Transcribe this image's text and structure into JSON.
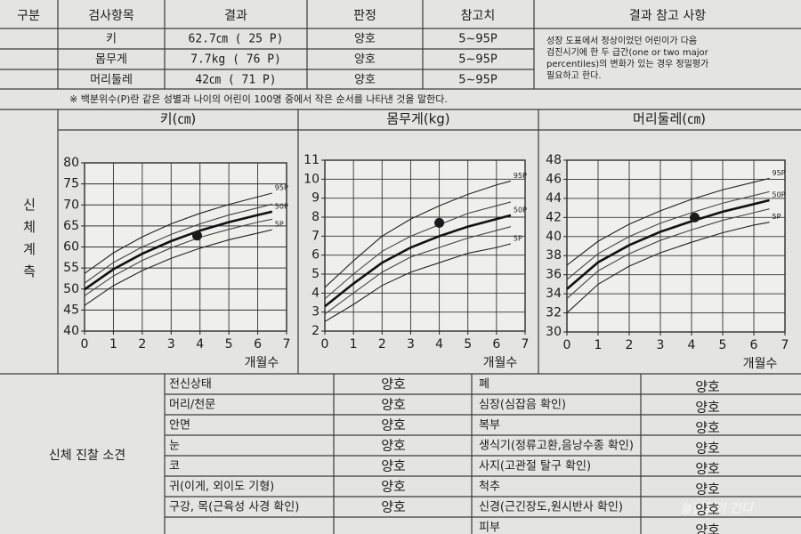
{
  "header": [
    "구분",
    "검사항목",
    "결과",
    "판정",
    "참고치",
    "결과 참고 사항"
  ],
  "measurements": [
    {
      "item": "키",
      "result": "62.7㎝ ( 25 P)",
      "judgment": "양호",
      "reference": "5~95P"
    },
    {
      "item": "몸무게",
      "result": "7.7kg ( 76 P)",
      "judgment": "양호",
      "reference": "5~95P"
    },
    {
      "item": "머리둘레",
      "result": "42㎝ ( 71 P)",
      "judgment": "양호",
      "reference": "5~95P"
    }
  ],
  "note": [
    "성장 도표에서 정상이었던 어린이가 다음",
    "검진시기에 한 두 급간(one or two major",
    "percentiles)의 변화가 있는 경우 정밀평가",
    "필요하고 한다."
  ],
  "footnote": "※ 백분위수(P)란 같은 성별과 나이의 어린이 100명 중에서 작은 순서를 나타낸 것을 말한다.",
  "section_label": "신체계측",
  "chart_data": [
    {
      "type": "line",
      "title": "키(㎝)",
      "xlabel": "개월수",
      "grid": true,
      "xlim": [
        0,
        7
      ],
      "xticks": [
        0,
        1,
        2,
        3,
        4,
        5,
        6,
        7
      ],
      "ylim": [
        40,
        80
      ],
      "yticks": [
        40,
        45,
        50,
        55,
        60,
        65,
        70,
        75,
        80
      ],
      "x": [
        0,
        1,
        2,
        3,
        4,
        5,
        6,
        6.5
      ],
      "series": [
        {
          "name": "95P",
          "color": "#222222",
          "values": [
            53.7,
            58.6,
            62.4,
            65.5,
            68.0,
            70.1,
            71.9,
            72.8
          ]
        },
        {
          "color": "#444444",
          "values": [
            51.4,
            56.3,
            60.0,
            63.0,
            65.5,
            67.6,
            69.3,
            70.2
          ]
        },
        {
          "name": "50P",
          "color": "#111111",
          "width": 2.6,
          "values": [
            49.9,
            54.7,
            58.4,
            61.4,
            63.9,
            65.9,
            67.6,
            68.4
          ]
        },
        {
          "color": "#444444",
          "values": [
            48.4,
            53.1,
            56.8,
            59.8,
            62.3,
            64.2,
            65.9,
            66.6
          ]
        },
        {
          "name": "5P",
          "color": "#222222",
          "values": [
            46.1,
            50.8,
            54.4,
            57.3,
            59.7,
            61.7,
            63.3,
            64.1
          ]
        }
      ],
      "marker": {
        "x": 3.9,
        "y": 62.7
      }
    },
    {
      "type": "line",
      "title": "몸무게(kg)",
      "xlabel": "개월수",
      "grid": true,
      "xlim": [
        0,
        7
      ],
      "xticks": [
        0,
        1,
        2,
        3,
        4,
        5,
        6,
        7
      ],
      "ylim": [
        2,
        11
      ],
      "yticks": [
        2,
        3,
        4,
        5,
        6,
        7,
        8,
        9,
        10,
        11
      ],
      "x": [
        0,
        1,
        2,
        3,
        4,
        5,
        6,
        6.5
      ],
      "series": [
        {
          "name": "95P",
          "color": "#222222",
          "values": [
            4.3,
            5.7,
            7.0,
            7.9,
            8.6,
            9.2,
            9.7,
            9.9
          ]
        },
        {
          "color": "#444444",
          "values": [
            3.7,
            5.0,
            6.2,
            7.0,
            7.6,
            8.2,
            8.6,
            8.8
          ]
        },
        {
          "name": "50P",
          "color": "#111111",
          "width": 2.6,
          "values": [
            3.3,
            4.5,
            5.6,
            6.4,
            7.0,
            7.5,
            7.9,
            8.1
          ]
        },
        {
          "color": "#444444",
          "values": [
            2.9,
            4.0,
            5.1,
            5.9,
            6.4,
            6.9,
            7.3,
            7.5
          ]
        },
        {
          "name": "5P",
          "color": "#222222",
          "values": [
            2.5,
            3.4,
            4.4,
            5.1,
            5.6,
            6.1,
            6.4,
            6.6
          ]
        }
      ],
      "marker": {
        "x": 4,
        "y": 7.7
      }
    },
    {
      "type": "line",
      "title": "머리둘레(㎝)",
      "xlabel": "개월수",
      "grid": true,
      "xlim": [
        0,
        7
      ],
      "xticks": [
        0,
        1,
        2,
        3,
        4,
        5,
        6,
        7
      ],
      "ylim": [
        30,
        48
      ],
      "yticks": [
        30,
        32,
        34,
        36,
        38,
        40,
        42,
        44,
        46,
        48
      ],
      "x": [
        0,
        1,
        2,
        3,
        4,
        5,
        6,
        6.5
      ],
      "series": [
        {
          "name": "95P",
          "color": "#222222",
          "values": [
            37.0,
            39.5,
            41.3,
            42.7,
            43.9,
            44.9,
            45.7,
            46.1
          ]
        },
        {
          "color": "#444444",
          "values": [
            35.5,
            38.2,
            40.0,
            41.4,
            42.5,
            43.5,
            44.3,
            44.7
          ]
        },
        {
          "name": "50P",
          "color": "#111111",
          "width": 2.6,
          "values": [
            34.5,
            37.3,
            39.1,
            40.5,
            41.6,
            42.6,
            43.4,
            43.8
          ]
        },
        {
          "color": "#444444",
          "values": [
            33.5,
            36.4,
            38.2,
            39.6,
            40.7,
            41.7,
            42.5,
            42.9
          ]
        },
        {
          "name": "5P",
          "color": "#222222",
          "values": [
            32.0,
            35.0,
            36.9,
            38.3,
            39.4,
            40.4,
            41.2,
            41.5
          ]
        }
      ],
      "marker": {
        "x": 4.1,
        "y": 42
      }
    }
  ],
  "exam": {
    "label": "신체 진찰 소견",
    "left": [
      {
        "item": "전신상태",
        "result": "양호"
      },
      {
        "item": "머리/천문",
        "result": "양호"
      },
      {
        "item": "안면",
        "result": "양호"
      },
      {
        "item": "눈",
        "result": "양호"
      },
      {
        "item": "코",
        "result": "양호"
      },
      {
        "item": "귀(이게, 외이도 기형)",
        "result": "양호"
      },
      {
        "item": "구강, 목(근육성 사경 확인)",
        "result": "양호"
      }
    ],
    "right": [
      {
        "item": "폐",
        "result": "양호"
      },
      {
        "item": "심장(심잡음 확인)",
        "result": "양호"
      },
      {
        "item": "복부",
        "result": "양호"
      },
      {
        "item": "생식기(정류고환,음낭수종 확인)",
        "result": "양호"
      },
      {
        "item": "사지(고관절 탈구 확인)",
        "result": "양호"
      },
      {
        "item": "척추",
        "result": "양호"
      },
      {
        "item": "신경(근긴장도,원시반사 확인)",
        "result": "양호"
      },
      {
        "item": "피부",
        "result": "양호"
      }
    ]
  },
  "watermark": "늘진철이 간다"
}
